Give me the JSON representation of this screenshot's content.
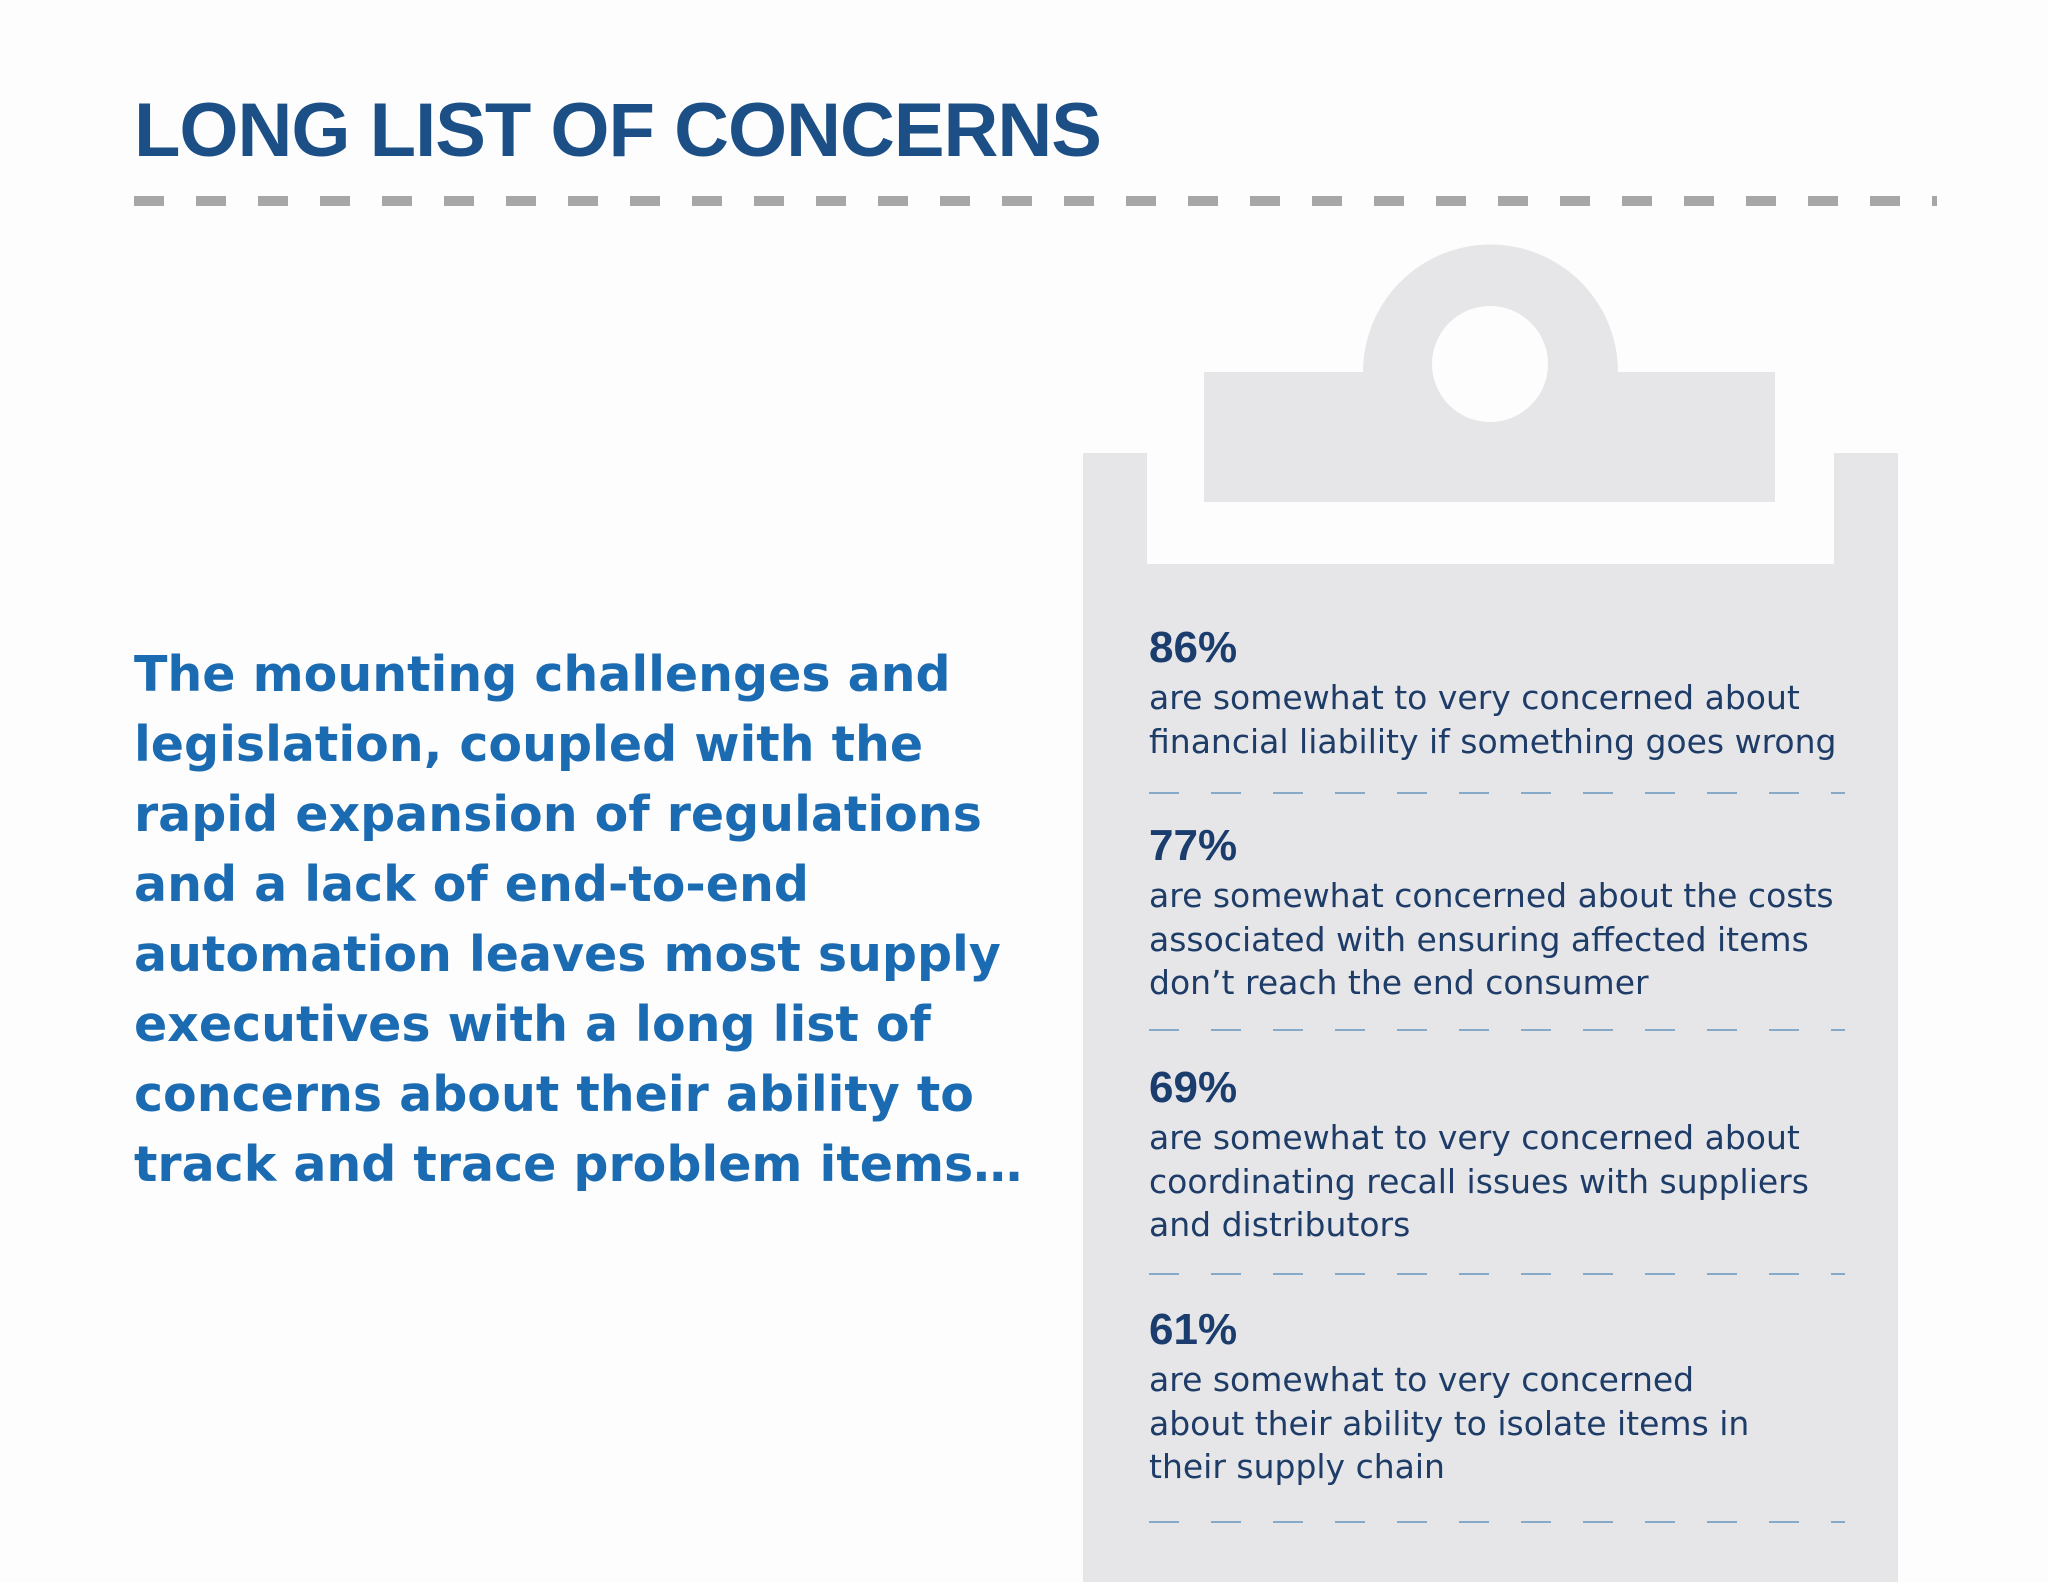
{
  "header": {
    "title": "LONG LIST OF CONCERNS"
  },
  "intro": {
    "text": "The mounting challenges and legislation, coupled with the rapid expansion of regulations and a lack of end-to-end automation leaves most supply executives with a long list of concerns about their ability to track and trace problem items…"
  },
  "clipboard": {
    "icon": "clipboard-icon",
    "color": "#e6e6e8"
  },
  "stats": [
    {
      "value": "86%",
      "lines": [
        "are somewhat to very concerned about",
        "financial liability if something goes wrong"
      ]
    },
    {
      "value": "77%",
      "lines": [
        "are somewhat concerned about the costs",
        "associated with ensuring affected items",
        "don’t reach the end consumer"
      ]
    },
    {
      "value": "69%",
      "lines": [
        "are somewhat to very concerned about",
        "coordinating recall  issues with suppliers",
        "and distributors"
      ]
    },
    {
      "value": "61%",
      "lines": [
        "are somewhat to very concerned",
        "about their ability to isolate items in",
        "their supply chain"
      ]
    }
  ],
  "colors": {
    "title": "#1c4f86",
    "intro": "#1b6bb2",
    "stat_value": "#1a3d6d",
    "stat_text": "#1e3c68",
    "rule": "#a7a7a7"
  }
}
